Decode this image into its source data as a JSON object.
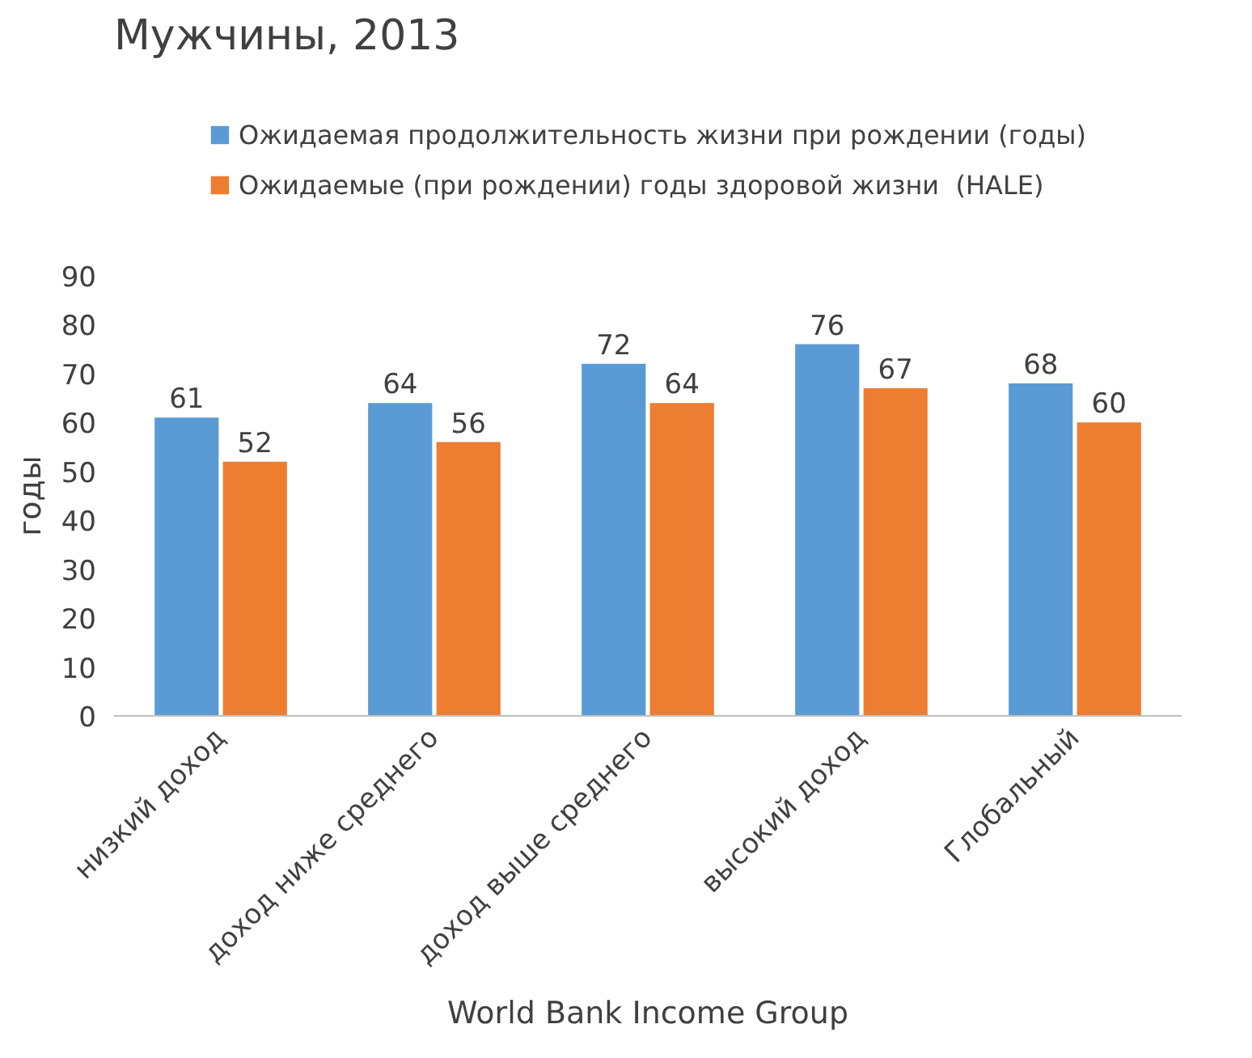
{
  "chart_data": {
    "type": "bar",
    "title": "Мужчины, 2013",
    "xlabel": "World Bank Income Group",
    "ylabel": "годы",
    "categories": [
      "низкий доход",
      "доход ниже среднего",
      "доход выше среднего",
      "высокий доход",
      "Глобальный"
    ],
    "series": [
      {
        "name": "Ожидаемая продолжительность жизни при рождении (годы)",
        "color": "#5b9bd5",
        "values": [
          61,
          64,
          72,
          76,
          68
        ]
      },
      {
        "name": "Ожидаемые (при рождении) годы здоровой жизни  (HALE)",
        "color": "#ed7d31",
        "values": [
          52,
          56,
          64,
          67,
          60
        ]
      }
    ],
    "ylim": [
      0,
      90
    ],
    "yticks": [
      0,
      10,
      20,
      30,
      40,
      50,
      60,
      70,
      80,
      90
    ],
    "data_labels": true,
    "legend": "top"
  }
}
